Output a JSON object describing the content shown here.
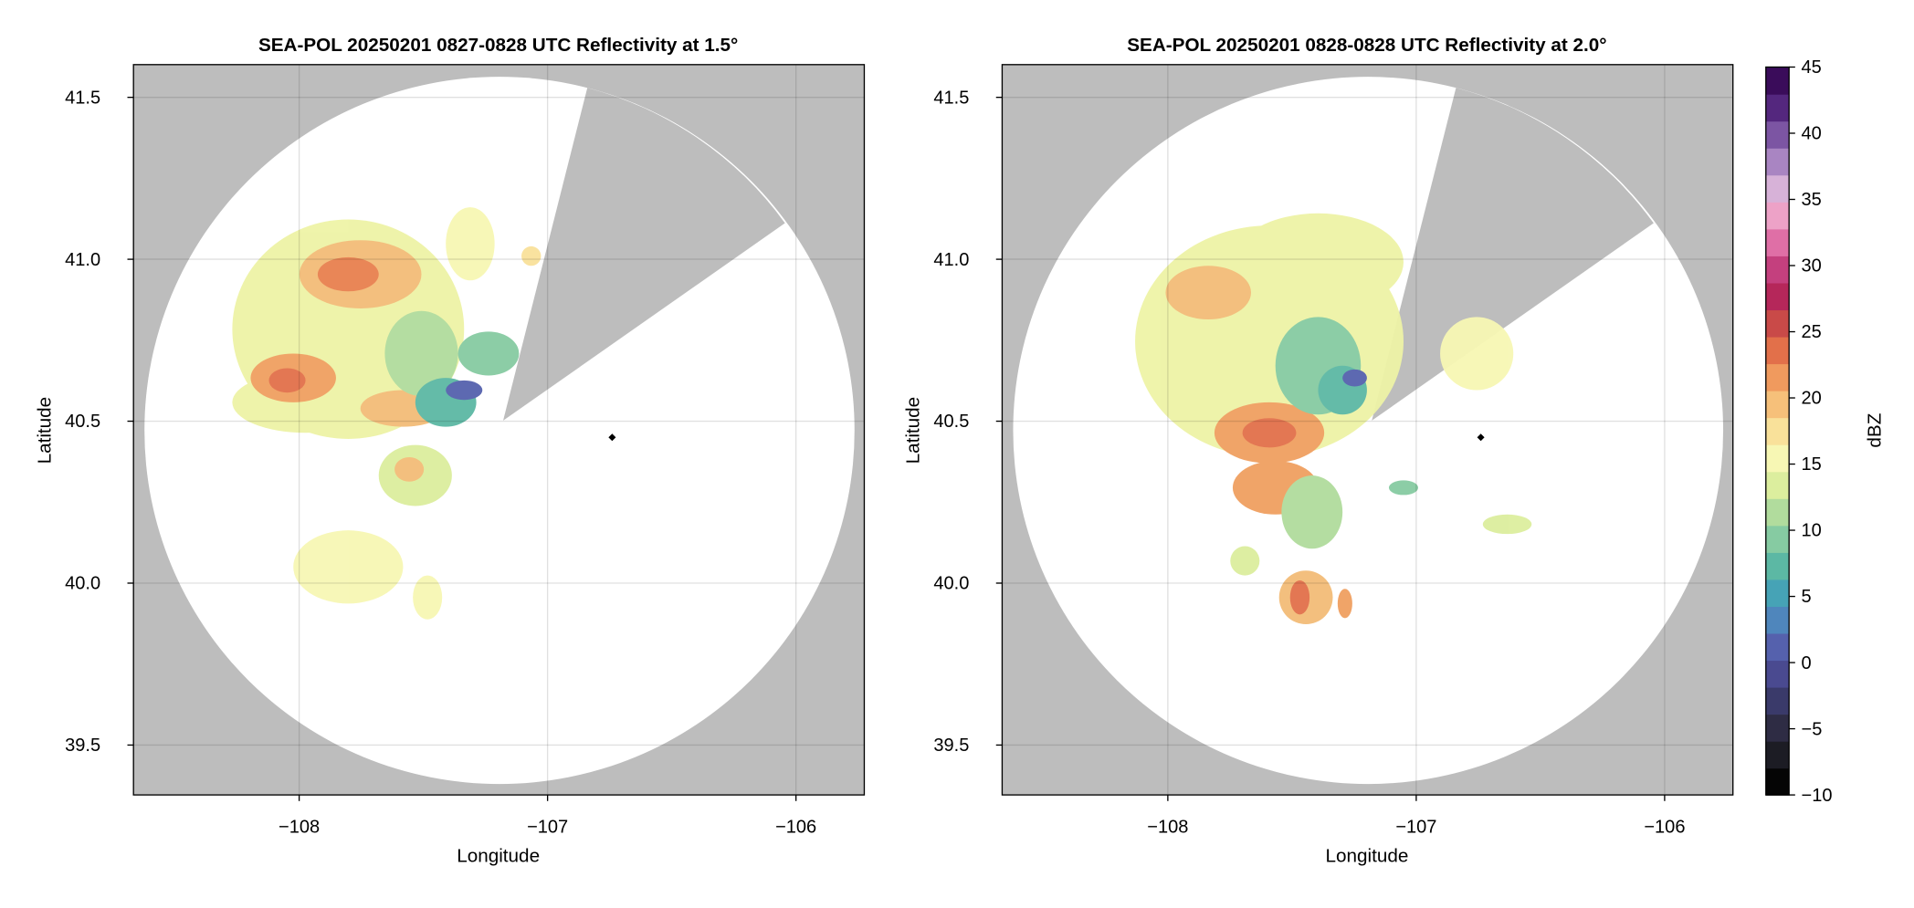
{
  "chart_data": [
    {
      "type": "radar-ppi",
      "title": "SEA-POL 20250201 0827-0828 UTC Reflectivity at 1.5°",
      "x_label": "Longitude",
      "y_label": "Latitude",
      "xlim": [
        -108.667,
        -105.725
      ],
      "ylim": [
        39.346,
        41.601
      ],
      "xticks": [
        {
          "value": -108,
          "label": "−108"
        },
        {
          "value": -107,
          "label": "−107"
        },
        {
          "value": -106,
          "label": "−106"
        }
      ],
      "yticks": [
        39.5,
        {
          "value": 40,
          "label": "40.0"
        },
        40.5,
        {
          "value": 41,
          "label": "41.0"
        },
        41.5
      ],
      "grid": true,
      "site": {
        "lon": -106.74,
        "lat": 40.45
      }
    },
    {
      "type": "radar-ppi",
      "title": "SEA-POL 20250201 0828-0828 UTC Reflectivity at 2.0°",
      "x_label": "Longitude",
      "y_label": "Latitude",
      "xlim": [
        -108.667,
        -105.725
      ],
      "ylim": [
        39.346,
        41.601
      ],
      "xticks": [
        {
          "value": -108,
          "label": "−108"
        },
        {
          "value": -107,
          "label": "−107"
        },
        {
          "value": -106,
          "label": "−106"
        }
      ],
      "yticks": [
        39.5,
        {
          "value": 40,
          "label": "40.0"
        },
        40.5,
        {
          "value": 41,
          "label": "41.0"
        },
        41.5
      ],
      "grid": true,
      "site": {
        "lon": -106.74,
        "lat": 40.45
      },
      "colorbar": {
        "label": "dBZ",
        "clim": [
          -10,
          45
        ],
        "ticks": [
          {
            "value": -10,
            "label": "−10"
          },
          {
            "value": -5,
            "label": "−5"
          },
          0,
          5,
          10,
          15,
          20,
          25,
          30,
          35,
          40,
          45
        ],
        "colors": [
          "#050505",
          "#1c1c24",
          "#2e2c44",
          "#3a3a6a",
          "#4a4a90",
          "#5561ad",
          "#4f86bc",
          "#46a3b6",
          "#5cb8a4",
          "#86cba2",
          "#b1dc9d",
          "#dcee9e",
          "#f7f7b4",
          "#f9e19a",
          "#f6c07a",
          "#f09a5e",
          "#e2704a",
          "#c94a48",
          "#b5275a",
          "#c4407e",
          "#df6fa6",
          "#eda2c7",
          "#d7b2d8",
          "#a985c2",
          "#7c55a3",
          "#54277e",
          "#3a0c5a"
        ]
      }
    }
  ]
}
